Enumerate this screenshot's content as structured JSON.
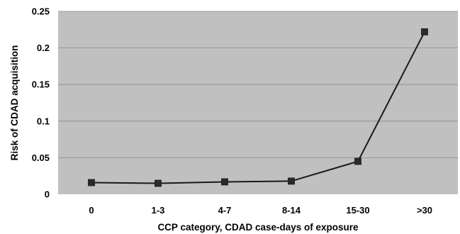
{
  "chart_data": {
    "type": "line",
    "title": "",
    "xlabel": "CCP category, CDAD case-days of exposure",
    "ylabel": "Risk of CDAD acquisition",
    "categories": [
      "0",
      "1-3",
      "4-7",
      "8-14",
      "15-30",
      ">30"
    ],
    "series": [
      {
        "values": [
          0.016,
          0.015,
          0.017,
          0.018,
          0.045,
          0.222
        ]
      }
    ],
    "ylim": [
      0,
      0.25
    ],
    "yticks": [
      0,
      0.05,
      0.1,
      0.15,
      0.2,
      0.25
    ],
    "ytick_labels": [
      "0",
      "0.05",
      "0.1",
      "0.15",
      "0.2",
      "0.25"
    ],
    "grid": true,
    "legend": "none",
    "colors": {
      "plot_background": "#c0c0c0",
      "gridline": "#8a8a8a",
      "line": "#1a1a1a",
      "marker": "#2a2a2a"
    },
    "marker": "square"
  }
}
